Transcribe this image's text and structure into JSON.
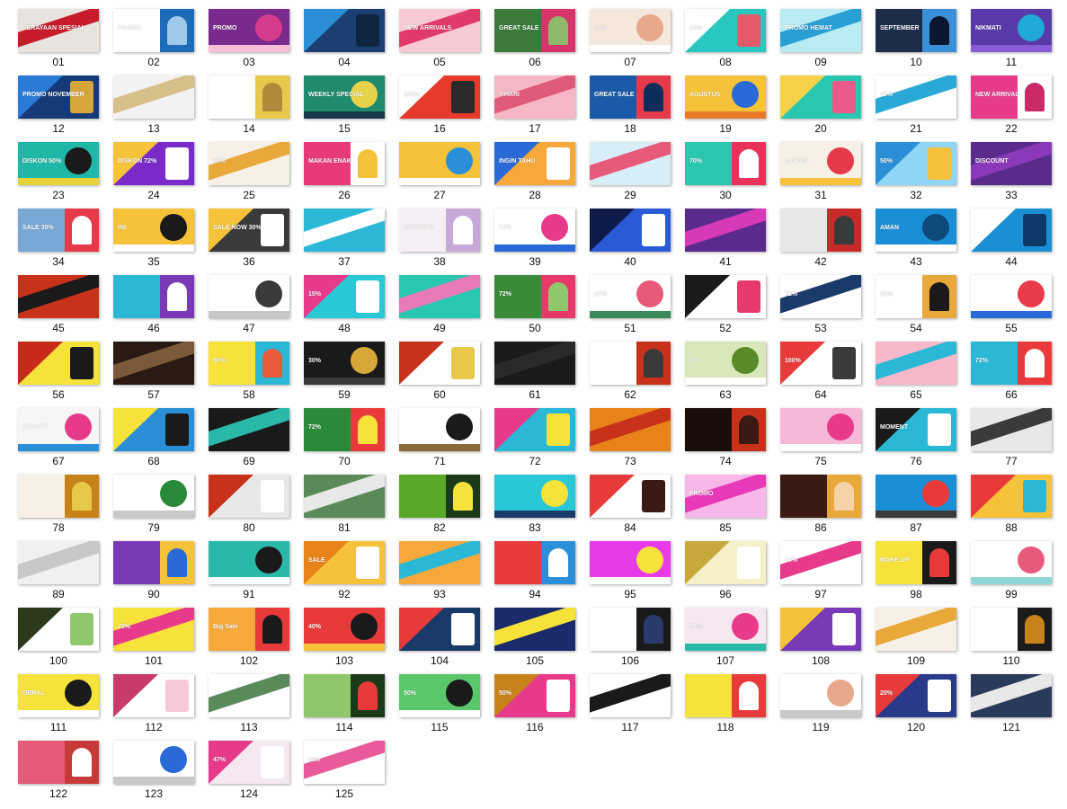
{
  "window": {
    "title": ""
  },
  "thumbnails": [
    {
      "label": "01",
      "colors": [
        "#e8e3df",
        "#c81b2a",
        "#2a5ca8"
      ],
      "text": "PERAYAAN SPESIAL"
    },
    {
      "label": "02",
      "colors": [
        "#ffffff",
        "#1e6bb8",
        "#9fc9ea"
      ],
      "text": "PROMO"
    },
    {
      "label": "03",
      "colors": [
        "#7a2a8c",
        "#d63a8a",
        "#f6c0d8"
      ],
      "text": "PROMO"
    },
    {
      "label": "04",
      "colors": [
        "#1b3f73",
        "#2a8fd6",
        "#0f2540"
      ],
      "text": ""
    },
    {
      "label": "05",
      "colors": [
        "#f6c9d4",
        "#e03a6a",
        "#ffffff"
      ],
      "text": "NEW ARRIVALS"
    },
    {
      "label": "06",
      "colors": [
        "#3b7a3a",
        "#d6346a",
        "#8fb86a"
      ],
      "text": "GREAT SALE"
    },
    {
      "label": "07",
      "colors": [
        "#f6e7dc",
        "#e7a88b",
        "#ffffff"
      ],
      "text": "30%"
    },
    {
      "label": "08",
      "colors": [
        "#2ac7c0",
        "#ffffff",
        "#e35a6a"
      ],
      "text": "15%"
    },
    {
      "label": "09",
      "colors": [
        "#b9ecf2",
        "#2a9fd6",
        "#ffffff"
      ],
      "text": "PROMO HEMAT"
    },
    {
      "label": "10",
      "colors": [
        "#1d2c4a",
        "#3a8fd6",
        "#0b1630"
      ],
      "text": "SEPTEMBER"
    },
    {
      "label": "11",
      "colors": [
        "#5a3aa8",
        "#1fa9d6",
        "#8a5ad8"
      ],
      "text": "NIKMATI"
    },
    {
      "label": "12",
      "colors": [
        "#143a78",
        "#2a7ad6",
        "#d6a53a"
      ],
      "text": "PROMO NOVEMBER"
    },
    {
      "label": "13",
      "colors": [
        "#f2f2f2",
        "#d6c08a",
        "#c8c8c8"
      ],
      "text": ""
    },
    {
      "label": "14",
      "colors": [
        "#ffffff",
        "#e8c84a",
        "#b0893a"
      ],
      "text": ""
    },
    {
      "label": "15",
      "colors": [
        "#1f8a6e",
        "#e8d24a",
        "#163a4a"
      ],
      "text": "WEEKLY SPECIAL"
    },
    {
      "label": "16",
      "colors": [
        "#e63a2a",
        "#ffffff",
        "#2a2a2a"
      ],
      "text": "100%"
    },
    {
      "label": "17",
      "colors": [
        "#f4b8c4",
        "#e05a7a",
        "#ffffff"
      ],
      "text": "7 HARI"
    },
    {
      "label": "18",
      "colors": [
        "#1a5aa8",
        "#e63a4a",
        "#0e2d5a"
      ],
      "text": "GREAT SALE"
    },
    {
      "label": "19",
      "colors": [
        "#f6c23a",
        "#2a6ad6",
        "#e87a2a"
      ],
      "text": "AGUSTUS"
    },
    {
      "label": "20",
      "colors": [
        "#2ac7b0",
        "#f6d24a",
        "#e85a8a"
      ],
      "text": ""
    },
    {
      "label": "21",
      "colors": [
        "#ffffff",
        "#2aa9d6",
        "#d8eef6"
      ],
      "text": "70%"
    },
    {
      "label": "22",
      "colors": [
        "#e83a8a",
        "#ffffff",
        "#c82a6a"
      ],
      "text": "NEW ARRIVAL"
    },
    {
      "label": "23",
      "colors": [
        "#1fb8a8",
        "#1a1a1a",
        "#e8d23a"
      ],
      "text": "DISKON 50%"
    },
    {
      "label": "24",
      "colors": [
        "#7a2ac8",
        "#f6c23a",
        "#ffffff"
      ],
      "text": "DISKON 72%"
    },
    {
      "label": "25",
      "colors": [
        "#f6f0e6",
        "#e8a83a",
        "#7a5a3a"
      ],
      "text": "30%"
    },
    {
      "label": "26",
      "colors": [
        "#e83a7a",
        "#ffffff",
        "#f6c23a"
      ],
      "text": "MAKAN ENAK"
    },
    {
      "label": "27",
      "colors": [
        "#f6c23a",
        "#2a8fd6",
        "#ffffff"
      ],
      "text": ""
    },
    {
      "label": "28",
      "colors": [
        "#f6a83a",
        "#2a6ad6",
        "#ffffff"
      ],
      "text": "INGIN TAHU"
    },
    {
      "label": "29",
      "colors": [
        "#d8eef6",
        "#e85a7a",
        "#ffffff"
      ],
      "text": ""
    },
    {
      "label": "30",
      "colors": [
        "#2ac7b0",
        "#e8325a",
        "#ffffff"
      ],
      "text": "70%"
    },
    {
      "label": "31",
      "colors": [
        "#f6f0e6",
        "#e63a4a",
        "#f6c23a"
      ],
      "text": "MAKAN"
    },
    {
      "label": "32",
      "colors": [
        "#8fd6f6",
        "#2a8fd6",
        "#f6c23a"
      ],
      "text": "50%"
    },
    {
      "label": "33",
      "colors": [
        "#5a2a8c",
        "#8a3ab8",
        "#2a1a4a"
      ],
      "text": "DISCOUNT"
    },
    {
      "label": "34",
      "colors": [
        "#7aa8d6",
        "#e63a4a",
        "#ffffff"
      ],
      "text": "SALE 30%"
    },
    {
      "label": "35",
      "colors": [
        "#f6c23a",
        "#1a1a1a",
        "#ffffff"
      ],
      "text": "INI"
    },
    {
      "label": "36",
      "colors": [
        "#3a3a3a",
        "#f6c23a",
        "#ffffff"
      ],
      "text": "SALE NOW 30%"
    },
    {
      "label": "37",
      "colors": [
        "#2ab8d6",
        "#ffffff",
        "#e63a7a"
      ],
      "text": ""
    },
    {
      "label": "38",
      "colors": [
        "#f6f0f6",
        "#c8a8d8",
        "#ffffff"
      ],
      "text": "WEDDING"
    },
    {
      "label": "39",
      "colors": [
        "#ffffff",
        "#e83a8a",
        "#2a6ad6"
      ],
      "text": "72%"
    },
    {
      "label": "40",
      "colors": [
        "#2a5ad6",
        "#0e1a4a",
        "#ffffff"
      ],
      "text": ""
    },
    {
      "label": "41",
      "colors": [
        "#5a2a8c",
        "#d63ab8",
        "#1a1a4a"
      ],
      "text": ""
    },
    {
      "label": "42",
      "colors": [
        "#e8e8e8",
        "#c82a2a",
        "#3a3a3a"
      ],
      "text": ""
    },
    {
      "label": "43",
      "colors": [
        "#1a8fd6",
        "#0e4a7a",
        "#ffffff"
      ],
      "text": "AMAN"
    },
    {
      "label": "44",
      "colors": [
        "#1a8fd6",
        "#ffffff",
        "#0e3a6a"
      ],
      "text": ""
    },
    {
      "label": "45",
      "colors": [
        "#c8321a",
        "#1a1a1a",
        "#f6c23a"
      ],
      "text": ""
    },
    {
      "label": "46",
      "colors": [
        "#2ab8d6",
        "#7a3ab8",
        "#ffffff"
      ],
      "text": ""
    },
    {
      "label": "47",
      "colors": [
        "#ffffff",
        "#3a3a3a",
        "#c8c8c8"
      ],
      "text": ""
    },
    {
      "label": "48",
      "colors": [
        "#2ac7d6",
        "#e83a8a",
        "#ffffff"
      ],
      "text": "15%"
    },
    {
      "label": "49",
      "colors": [
        "#2ac7b0",
        "#e87ab8",
        "#ffffff"
      ],
      "text": ""
    },
    {
      "label": "50",
      "colors": [
        "#3a8a3a",
        "#e83a6a",
        "#8fc86a"
      ],
      "text": "72%"
    },
    {
      "label": "51",
      "colors": [
        "#ffffff",
        "#e85a7a",
        "#3a8a5a"
      ],
      "text": "20%"
    },
    {
      "label": "52",
      "colors": [
        "#ffffff",
        "#1a1a1a",
        "#e83a6a"
      ],
      "text": ""
    },
    {
      "label": "53",
      "colors": [
        "#ffffff",
        "#1a3a6a",
        "#2a8fd6"
      ],
      "text": "72%"
    },
    {
      "label": "54",
      "colors": [
        "#ffffff",
        "#e8a83a",
        "#1a1a1a"
      ],
      "text": "20%"
    },
    {
      "label": "55",
      "colors": [
        "#ffffff",
        "#e83a4a",
        "#2a6ad6"
      ],
      "text": ""
    },
    {
      "label": "56",
      "colors": [
        "#f6e23a",
        "#c82a1a",
        "#1a1a1a"
      ],
      "text": ""
    },
    {
      "label": "57",
      "colors": [
        "#2a1a12",
        "#7a5a3a",
        "#1a0e0a"
      ],
      "text": ""
    },
    {
      "label": "58",
      "colors": [
        "#f6e23a",
        "#2ab8d6",
        "#e85a3a"
      ],
      "text": "50%"
    },
    {
      "label": "59",
      "colors": [
        "#1a1a1a",
        "#d6a83a",
        "#3a3a3a"
      ],
      "text": "30%"
    },
    {
      "label": "60",
      "colors": [
        "#ffffff",
        "#c8321a",
        "#e8c84a"
      ],
      "text": ""
    },
    {
      "label": "61",
      "colors": [
        "#1a1a1a",
        "#2a2a2a",
        "#e8e8e8"
      ],
      "text": ""
    },
    {
      "label": "62",
      "colors": [
        "#ffffff",
        "#c8321a",
        "#3a3a3a"
      ],
      "text": ""
    },
    {
      "label": "63",
      "colors": [
        "#d8e8b8",
        "#5a8a2a",
        "#ffffff"
      ],
      "text": "30%"
    },
    {
      "label": "64",
      "colors": [
        "#ffffff",
        "#e83a3a",
        "#3a3a3a"
      ],
      "text": "100%"
    },
    {
      "label": "65",
      "colors": [
        "#f6b8c8",
        "#2ab8d6",
        "#e85a3a"
      ],
      "text": ""
    },
    {
      "label": "66",
      "colors": [
        "#2ab8d6",
        "#e83a3a",
        "#ffffff"
      ],
      "text": "72%"
    },
    {
      "label": "67",
      "colors": [
        "#f6f6f6",
        "#e83a8a",
        "#2a8fd6"
      ],
      "text": "BEAUTY"
    },
    {
      "label": "68",
      "colors": [
        "#2a8fd6",
        "#f6e23a",
        "#1a1a1a"
      ],
      "text": ""
    },
    {
      "label": "69",
      "colors": [
        "#1a1a1a",
        "#2ab8a8",
        "#e8e8e8"
      ],
      "text": ""
    },
    {
      "label": "70",
      "colors": [
        "#2a8a3a",
        "#e83a3a",
        "#f6e23a"
      ],
      "text": "72%"
    },
    {
      "label": "71",
      "colors": [
        "#ffffff",
        "#1a1a1a",
        "#8a6a3a"
      ],
      "text": ""
    },
    {
      "label": "72",
      "colors": [
        "#2ab8d6",
        "#e83a8a",
        "#f6e23a"
      ],
      "text": ""
    },
    {
      "label": "73",
      "colors": [
        "#e8831a",
        "#c8321a",
        "#f6d2a8"
      ],
      "text": ""
    },
    {
      "label": "74",
      "colors": [
        "#1a0e0a",
        "#c8321a",
        "#3a1a12"
      ],
      "text": ""
    },
    {
      "label": "75",
      "colors": [
        "#f6b8d8",
        "#e83a8a",
        "#ffffff"
      ],
      "text": ""
    },
    {
      "label": "76",
      "colors": [
        "#2ab8d6",
        "#1a1a1a",
        "#ffffff"
      ],
      "text": "MOMENT"
    },
    {
      "label": "77",
      "colors": [
        "#e8e8e8",
        "#3a3a3a",
        "#c8c8c8"
      ],
      "text": ""
    },
    {
      "label": "78",
      "colors": [
        "#f6f0e6",
        "#c8821a",
        "#e8c84a"
      ],
      "text": ""
    },
    {
      "label": "79",
      "colors": [
        "#ffffff",
        "#2a8a3a",
        "#c8c8c8"
      ],
      "text": ""
    },
    {
      "label": "80",
      "colors": [
        "#e8e8e8",
        "#c8321a",
        "#ffffff"
      ],
      "text": ""
    },
    {
      "label": "81",
      "colors": [
        "#5a8a5a",
        "#e8e8e8",
        "#2a3a2a"
      ],
      "text": ""
    },
    {
      "label": "82",
      "colors": [
        "#5aa82a",
        "#1a3a1a",
        "#f6e23a"
      ],
      "text": ""
    },
    {
      "label": "83",
      "colors": [
        "#2ac7d6",
        "#f6e23a",
        "#1a3a6a"
      ],
      "text": ""
    },
    {
      "label": "84",
      "colors": [
        "#ffffff",
        "#e83a3a",
        "#3a1a12"
      ],
      "text": ""
    },
    {
      "label": "85",
      "colors": [
        "#f6b8e8",
        "#e83ab8",
        "#f6c23a"
      ],
      "text": "PROMO"
    },
    {
      "label": "86",
      "colors": [
        "#3a1a12",
        "#e8a83a",
        "#f6d2a8"
      ],
      "text": ""
    },
    {
      "label": "87",
      "colors": [
        "#1a8fd6",
        "#e83a3a",
        "#3a3a3a"
      ],
      "text": ""
    },
    {
      "label": "88",
      "colors": [
        "#f6c23a",
        "#e83a3a",
        "#2ab8d6"
      ],
      "text": ""
    },
    {
      "label": "89",
      "colors": [
        "#f0f0f0",
        "#c8c8c8",
        "#a8a8a8"
      ],
      "text": ""
    },
    {
      "label": "90",
      "colors": [
        "#7a3ab8",
        "#f6c23a",
        "#2a6ad6"
      ],
      "text": ""
    },
    {
      "label": "91",
      "colors": [
        "#2ab8a8",
        "#1a1a1a",
        "#ffffff"
      ],
      "text": ""
    },
    {
      "label": "92",
      "colors": [
        "#f6c23a",
        "#e8831a",
        "#ffffff"
      ],
      "text": "SALE"
    },
    {
      "label": "93",
      "colors": [
        "#f6a83a",
        "#2ab8d6",
        "#ffffff"
      ],
      "text": ""
    },
    {
      "label": "94",
      "colors": [
        "#e83a3a",
        "#2a8fd6",
        "#ffffff"
      ],
      "text": ""
    },
    {
      "label": "95",
      "colors": [
        "#e83ae8",
        "#f6e23a",
        "#ffffff"
      ],
      "text": ""
    },
    {
      "label": "96",
      "colors": [
        "#f6f0c8",
        "#c8a83a",
        "#ffffff"
      ],
      "text": ""
    },
    {
      "label": "97",
      "colors": [
        "#ffffff",
        "#e83a8a",
        "#1a1a1a"
      ],
      "text": "70%"
    },
    {
      "label": "98",
      "colors": [
        "#f6e23a",
        "#1a1a1a",
        "#e83a3a"
      ],
      "text": "MAKE UP"
    },
    {
      "label": "99",
      "colors": [
        "#ffffff",
        "#e85a7a",
        "#8fd6d6"
      ],
      "text": ""
    },
    {
      "label": "100",
      "colors": [
        "#ffffff",
        "#2a3a1a",
        "#8fc86a"
      ],
      "text": ""
    },
    {
      "label": "101",
      "colors": [
        "#f6e23a",
        "#e83a8a",
        "#ffffff"
      ],
      "text": "25%"
    },
    {
      "label": "102",
      "colors": [
        "#f6a83a",
        "#e83a3a",
        "#1a1a1a"
      ],
      "text": "Big Sale"
    },
    {
      "label": "103",
      "colors": [
        "#e83a3a",
        "#1a1a1a",
        "#f6c23a"
      ],
      "text": "40%"
    },
    {
      "label": "104",
      "colors": [
        "#1a3a6a",
        "#e83a3a",
        "#ffffff"
      ],
      "text": ""
    },
    {
      "label": "105",
      "colors": [
        "#1a2a6a",
        "#f6e23a",
        "#ffffff"
      ],
      "text": ""
    },
    {
      "label": "106",
      "colors": [
        "#ffffff",
        "#1a1a1a",
        "#2a3a6a"
      ],
      "text": ""
    },
    {
      "label": "107",
      "colors": [
        "#f6e8f0",
        "#e83a8a",
        "#2ab8a8"
      ],
      "text": "50%"
    },
    {
      "label": "108",
      "colors": [
        "#7a3ab8",
        "#f6c23a",
        "#ffffff"
      ],
      "text": ""
    },
    {
      "label": "109",
      "colors": [
        "#f6f0e6",
        "#e8a83a",
        "#ffffff"
      ],
      "text": ""
    },
    {
      "label": "110",
      "colors": [
        "#ffffff",
        "#1a1a1a",
        "#c8821a"
      ],
      "text": ""
    },
    {
      "label": "111",
      "colors": [
        "#f6e23a",
        "#1a1a1a",
        "#ffffff"
      ],
      "text": "OBRAL"
    },
    {
      "label": "112",
      "colors": [
        "#ffffff",
        "#c83a6a",
        "#f6c8d8"
      ],
      "text": ""
    },
    {
      "label": "113",
      "colors": [
        "#ffffff",
        "#5a8a5a",
        "#f6e23a"
      ],
      "text": ""
    },
    {
      "label": "114",
      "colors": [
        "#8fc86a",
        "#1a3a1a",
        "#e83a3a"
      ],
      "text": ""
    },
    {
      "label": "115",
      "colors": [
        "#5ac86a",
        "#1a1a1a",
        "#ffffff"
      ],
      "text": "50%"
    },
    {
      "label": "116",
      "colors": [
        "#e83a8a",
        "#c8821a",
        "#ffffff"
      ],
      "text": "50%"
    },
    {
      "label": "117",
      "colors": [
        "#ffffff",
        "#1a1a1a",
        "#c8c8c8"
      ],
      "text": ""
    },
    {
      "label": "118",
      "colors": [
        "#f6e23a",
        "#e83a3a",
        "#ffffff"
      ],
      "text": ""
    },
    {
      "label": "119",
      "colors": [
        "#ffffff",
        "#e8a88a",
        "#c8c8c8"
      ],
      "text": ""
    },
    {
      "label": "120",
      "colors": [
        "#2a3a8a",
        "#e83a3a",
        "#ffffff"
      ],
      "text": "20%"
    },
    {
      "label": "121",
      "colors": [
        "#2a3a5a",
        "#e8e8e8",
        "#ffffff"
      ],
      "text": ""
    },
    {
      "label": "122",
      "colors": [
        "#e85a7a",
        "#c83a3a",
        "#ffffff"
      ],
      "text": ""
    },
    {
      "label": "123",
      "colors": [
        "#ffffff",
        "#2a6ad6",
        "#c8c8c8"
      ],
      "text": ""
    },
    {
      "label": "124",
      "colors": [
        "#f6e8f0",
        "#e83a8a",
        "#ffffff"
      ],
      "text": "47%"
    },
    {
      "label": "125",
      "colors": [
        "#ffffff",
        "#e85a9a",
        "#2a3a6a"
      ],
      "text": "sale"
    }
  ]
}
